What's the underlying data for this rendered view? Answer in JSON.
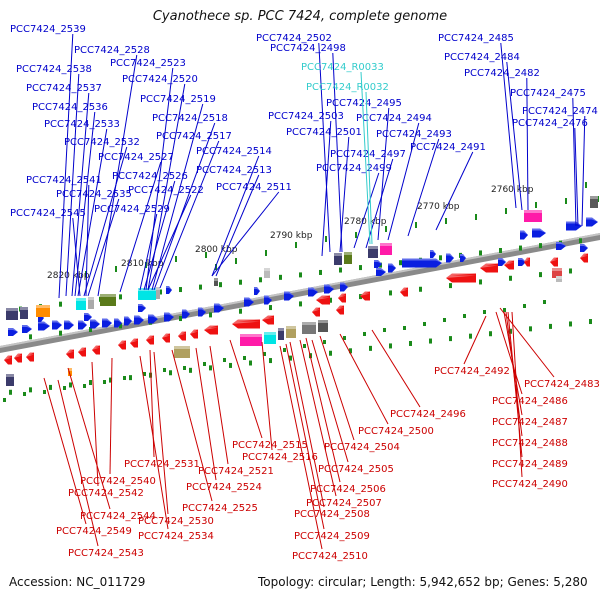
{
  "title": "Cyanothece sp. PCC 7424, complete genome",
  "footer": {
    "accession": "Accession: NC_011729",
    "summary": "Topology: circular; Length: 5,942,652 bp; Genes: 5,280"
  },
  "colors": {
    "plus_label": "#0000cc",
    "rna_label": "#33cccc",
    "minus_label": "#cc0000",
    "plus_gene": "#0a1ee0",
    "minus_gene": "#ee1111",
    "backbone": "#8a8a8a",
    "tick": "#1a8a1a"
  },
  "position_labels": [
    "2820 kbp",
    "2810 kbp",
    "2800 kbp",
    "2790 kbp",
    "2780 kbp",
    "2770 kbp",
    "2760 kbp"
  ],
  "plus_labels": [
    "PCC7424_2539",
    "PCC7424_2528",
    "PCC7424_2538",
    "PCC7424_2523",
    "PCC7424_2537",
    "PCC7424_2520",
    "PCC7424_2536",
    "PCC7424_2519",
    "PCC7424_2533",
    "PCC7424_2518",
    "PCC7424_2532",
    "PCC7424_2517",
    "PCC7424_2527",
    "PCC7424_2514",
    "PCC7424_2541",
    "PCC7424_2526",
    "PCC7424_2513",
    "PCC7424_2535",
    "PCC7424_2522",
    "PCC7424_2511",
    "PCC7424_2545",
    "PCC7424_2529",
    "PCC7424_2502",
    "PCC7424_2498",
    "PCC7424_2495",
    "PCC7424_2503",
    "PCC7424_2494",
    "PCC7424_2501",
    "PCC7424_2493",
    "PCC7424_2497",
    "PCC7424_2491",
    "PCC7424_2499",
    "PCC7424_2485",
    "PCC7424_2484",
    "PCC7424_2482",
    "PCC7424_2475",
    "PCC7424_2474",
    "PCC7424_2476"
  ],
  "rna_labels": [
    "PCC7424_R0033",
    "PCC7424_R0032"
  ],
  "minus_labels": [
    "PCC7424_2492",
    "PCC7424_2483",
    "PCC7424_2486",
    "PCC7424_2487",
    "PCC7424_2488",
    "PCC7424_2489",
    "PCC7424_2490",
    "PCC7424_2496",
    "PCC7424_2500",
    "PCC7424_2515",
    "PCC7424_2504",
    "PCC7424_2516",
    "PCC7424_2531",
    "PCC7424_2521",
    "PCC7424_2505",
    "PCC7424_2540",
    "PCC7424_2542",
    "PCC7424_2524",
    "PCC7424_2506",
    "PCC7424_2507",
    "PCC7424_2525",
    "PCC7424_2508",
    "PCC7424_2544",
    "PCC7424_2530",
    "PCC7424_2534",
    "PCC7424_2549",
    "PCC7424_2509",
    "PCC7424_2543",
    "PCC7424_2510"
  ]
}
